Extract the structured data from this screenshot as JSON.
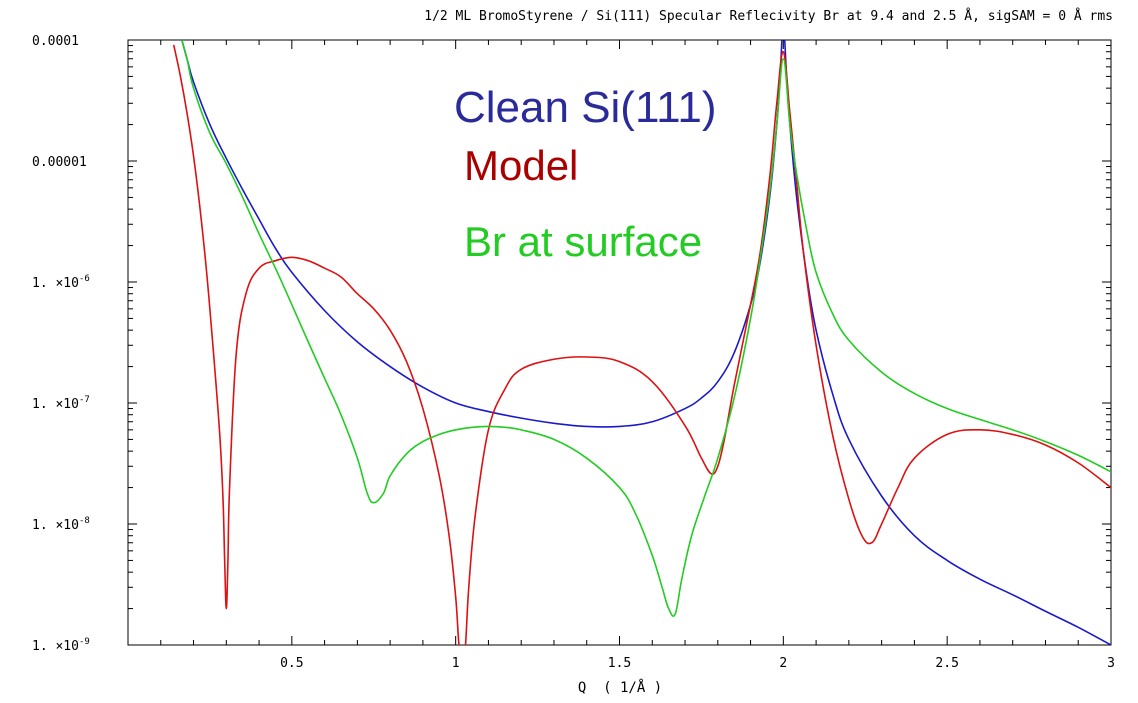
{
  "chart_data": {
    "type": "line",
    "title": "1/2 ML BromoStyrene /  Si(111) Specular Reflecivity  Br at 9.4 and 2.5 Å, sigSAM = 0 Å rms",
    "xlabel": "Q  ( 1/Å )",
    "ylabel": "",
    "xlim": [
      0,
      3
    ],
    "ylim": [
      1e-09,
      0.0001
    ],
    "yscale": "log",
    "grid": false,
    "legend_position": "top-center",
    "x_ticks": [
      {
        "value": 0.5,
        "label": "0.5"
      },
      {
        "value": 1,
        "label": "1"
      },
      {
        "value": 1.5,
        "label": "1.5"
      },
      {
        "value": 2,
        "label": "2"
      },
      {
        "value": 2.5,
        "label": "2.5"
      },
      {
        "value": 3,
        "label": "3"
      }
    ],
    "y_ticks": [
      {
        "value": 0.0001,
        "label": "0.0001",
        "mantissa": "",
        "exp": ""
      },
      {
        "value": 1e-05,
        "label": "0.00001",
        "mantissa": "",
        "exp": ""
      },
      {
        "value": 1e-06,
        "label": "",
        "mantissa": "1. ×10",
        "exp": "-6"
      },
      {
        "value": 1e-07,
        "label": "",
        "mantissa": "1. ×10",
        "exp": "-7"
      },
      {
        "value": 1e-08,
        "label": "",
        "mantissa": "1. ×10",
        "exp": "-8"
      },
      {
        "value": 1e-09,
        "label": "",
        "mantissa": "1. ×10",
        "exp": "-9"
      }
    ],
    "series": [
      {
        "name": "Clean Si(111)",
        "color": "#1a1acc",
        "legend_color": "#2a2a9a",
        "x": [
          0.16,
          0.18,
          0.2,
          0.25,
          0.3,
          0.35,
          0.4,
          0.45,
          0.5,
          0.6,
          0.7,
          0.8,
          0.9,
          1.0,
          1.1,
          1.2,
          1.3,
          1.4,
          1.5,
          1.6,
          1.7,
          1.75,
          1.8,
          1.85,
          1.9,
          1.93,
          1.96,
          1.98,
          1.99,
          2.0,
          2.01,
          2.02,
          2.04,
          2.07,
          2.1,
          2.15,
          2.2,
          2.3,
          2.4,
          2.5,
          2.6,
          2.7,
          2.8,
          2.9,
          3.0
        ],
        "y": [
          0.00011,
          7e-05,
          4.5e-05,
          2e-05,
          1.05e-05,
          5.8e-06,
          3.3e-06,
          1.9e-06,
          1.2e-06,
          5.8e-07,
          3.2e-07,
          2e-07,
          1.35e-07,
          1e-07,
          8.5e-08,
          7.5e-08,
          6.8e-08,
          6.4e-08,
          6.4e-08,
          7e-08,
          9e-08,
          1.1e-07,
          1.5e-07,
          2.6e-07,
          6.5e-07,
          1.5e-06,
          5.5e-06,
          2e-05,
          5e-05,
          0.00013,
          5e-05,
          2e-05,
          5.2e-06,
          1.2e-06,
          4e-07,
          1.2e-07,
          5e-08,
          1.7e-08,
          8e-09,
          5e-09,
          3.5e-09,
          2.6e-09,
          1.9e-09,
          1.4e-09,
          1e-09
        ]
      },
      {
        "name": "Model",
        "color": "#dd1111",
        "legend_color": "#aa0000",
        "x": [
          0.14,
          0.16,
          0.18,
          0.2,
          0.22,
          0.24,
          0.26,
          0.28,
          0.29,
          0.295,
          0.3,
          0.305,
          0.31,
          0.33,
          0.36,
          0.4,
          0.45,
          0.5,
          0.55,
          0.6,
          0.65,
          0.7,
          0.75,
          0.8,
          0.85,
          0.9,
          0.95,
          0.98,
          1.0,
          1.01,
          1.02,
          1.03,
          1.04,
          1.06,
          1.1,
          1.15,
          1.2,
          1.3,
          1.4,
          1.5,
          1.6,
          1.7,
          1.75,
          1.78,
          1.8,
          1.82,
          1.85,
          1.9,
          1.93,
          1.96,
          1.98,
          2.0,
          2.02,
          2.04,
          2.06,
          2.1,
          2.15,
          2.2,
          2.24,
          2.27,
          2.3,
          2.35,
          2.4,
          2.5,
          2.6,
          2.7,
          2.8,
          2.9,
          3.0
        ],
        "y": [
          9e-05,
          5e-05,
          2.5e-05,
          1.1e-05,
          4e-06,
          1.2e-06,
          2.8e-07,
          5.5e-08,
          1.6e-08,
          5e-09,
          2e-09,
          5e-09,
          2e-08,
          2.5e-07,
          8e-07,
          1.3e-06,
          1.5e-06,
          1.6e-06,
          1.5e-06,
          1.3e-06,
          1.1e-06,
          8e-07,
          6e-07,
          4e-07,
          2.2e-07,
          9e-08,
          2.5e-08,
          8e-09,
          2.5e-09,
          1e-09,
          6e-10,
          1e-09,
          3e-09,
          1.2e-08,
          6e-08,
          1.3e-07,
          1.9e-07,
          2.3e-07,
          2.4e-07,
          2.2e-07,
          1.5e-07,
          6.5e-08,
          3.5e-08,
          2.6e-08,
          3e-08,
          5e-08,
          1.4e-07,
          6.5e-07,
          1.8e-06,
          8e-06,
          3e-05,
          8e-05,
          2.5e-05,
          7e-06,
          1.9e-06,
          3e-07,
          5.5e-08,
          1.6e-08,
          8e-09,
          7e-09,
          1e-08,
          2e-08,
          3.5e-08,
          5.5e-08,
          6e-08,
          5.5e-08,
          4.5e-08,
          3.2e-08,
          2e-08
        ]
      },
      {
        "name": "Br at surface",
        "color": "#22cc22",
        "legend_color": "#22cc22",
        "x": [
          0.16,
          0.18,
          0.2,
          0.25,
          0.3,
          0.35,
          0.4,
          0.45,
          0.5,
          0.55,
          0.6,
          0.65,
          0.7,
          0.73,
          0.75,
          0.78,
          0.8,
          0.85,
          0.9,
          0.95,
          1.0,
          1.05,
          1.1,
          1.15,
          1.2,
          1.3,
          1.4,
          1.5,
          1.55,
          1.6,
          1.63,
          1.65,
          1.67,
          1.69,
          1.72,
          1.76,
          1.8,
          1.85,
          1.9,
          1.93,
          1.96,
          1.98,
          2.0,
          2.02,
          2.04,
          2.07,
          2.1,
          2.15,
          2.2,
          2.3,
          2.4,
          2.5,
          2.6,
          2.7,
          2.8,
          2.9,
          3.0
        ],
        "y": [
          0.00011,
          7e-05,
          4e-05,
          1.7e-05,
          9.5e-06,
          5e-06,
          2.5e-06,
          1.3e-06,
          6.5e-07,
          3.2e-07,
          1.6e-07,
          8e-08,
          3.5e-08,
          1.8e-08,
          1.5e-08,
          1.8e-08,
          2.5e-08,
          3.8e-08,
          4.8e-08,
          5.5e-08,
          6e-08,
          6.3e-08,
          6.4e-08,
          6.3e-08,
          6e-08,
          5e-08,
          3.5e-08,
          2e-08,
          1.2e-08,
          5.5e-09,
          3e-09,
          2e-09,
          1.8e-09,
          3.5e-09,
          8e-09,
          1.7e-08,
          3.5e-08,
          1.1e-07,
          5e-07,
          1.6e-06,
          6e-06,
          2e-05,
          7e-05,
          2e-05,
          8e-06,
          2.8e-06,
          1.2e-06,
          5.5e-07,
          3.3e-07,
          1.8e-07,
          1.2e-07,
          9e-08,
          7.3e-08,
          6e-08,
          4.8e-08,
          3.7e-08,
          2.7e-08
        ]
      }
    ]
  }
}
